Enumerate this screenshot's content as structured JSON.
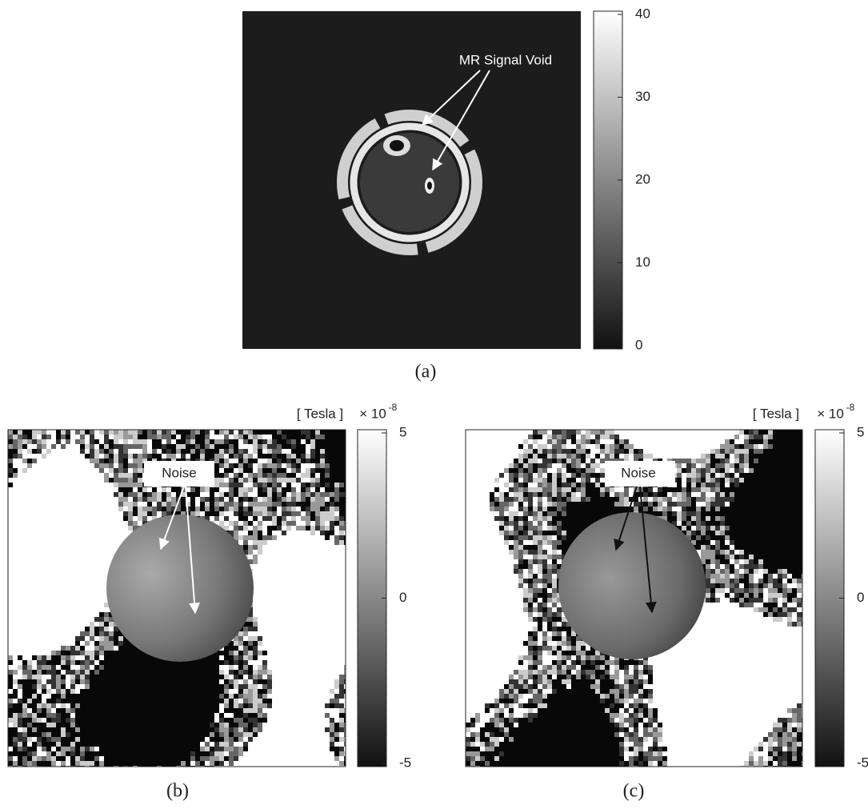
{
  "panels": [
    {
      "label": "(a)",
      "annotation": "MR Signal Void",
      "colorbar": {
        "clim": [
          0,
          40
        ],
        "ticks": [
          0,
          10,
          20,
          30,
          40
        ]
      }
    },
    {
      "label": "(b)",
      "annotation": "Noise",
      "unit": "[ Tesla ]",
      "multiplier": "× 10",
      "exponent": "-8",
      "colorbar": {
        "clim": [
          -5,
          5
        ],
        "ticks": [
          -5,
          0,
          5
        ]
      }
    },
    {
      "label": "(c)",
      "annotation": "Noise",
      "unit": "[ Tesla ]",
      "multiplier": "× 10",
      "exponent": "-8",
      "colorbar": {
        "clim": [
          -5,
          5
        ],
        "ticks": [
          -5,
          0,
          5
        ]
      }
    }
  ]
}
